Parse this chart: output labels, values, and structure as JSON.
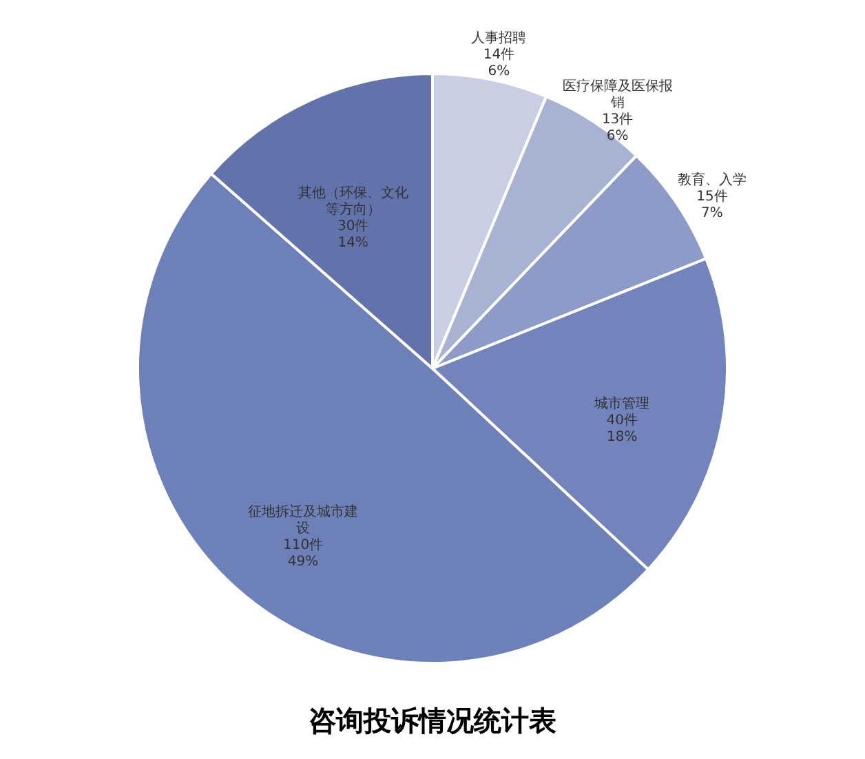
{
  "chart_data": {
    "type": "pie",
    "title": "咨询投诉情况统计表",
    "categories": [
      "人事招聘",
      "医疗保障及医保报销",
      "教育、入学",
      "城市管理",
      "征地拆迁及城市建设",
      "其他（环保、文化等方向）"
    ],
    "values": [
      14,
      13,
      15,
      40,
      110,
      30
    ],
    "value_labels": [
      "14件\n6%",
      "13件\n6%",
      "15件\n7%",
      "40件\n18%",
      "110件\n49%",
      "30件\n14%"
    ],
    "colors": [
      "#c9cee2",
      "#a8b2d2",
      "#8e9ac7",
      "#7384bc",
      "#6e80b8",
      "#6273ab"
    ]
  }
}
